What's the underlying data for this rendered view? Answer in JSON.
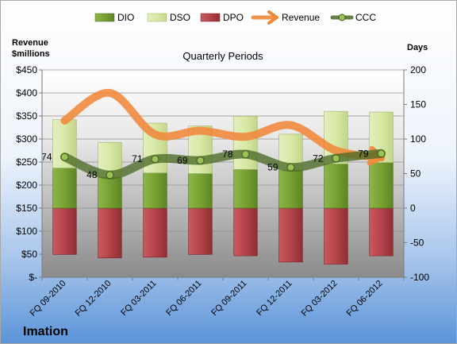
{
  "company": "Imation",
  "colors": {
    "dio": "#77a232",
    "dso": "#d8e8a6",
    "dpo": "#b5434a",
    "revenue": "#f0883a",
    "ccc": "#4b6a26",
    "bg_top": "#ffffff",
    "bg_bottom": "#5b94d8"
  },
  "chart_data": {
    "type": "bar",
    "title": "Quarterly Periods",
    "ylabel_left": "Revenue $millions",
    "ylabel_right": "Days",
    "categories": [
      "FQ 09-2010",
      "FQ 12-2010",
      "FQ 03-2011",
      "FQ 06-2011",
      "FQ 09-2011",
      "FQ 12-2011",
      "FQ 03-2012",
      "FQ 06-2012"
    ],
    "left_axis": {
      "ylim": [
        0,
        450
      ],
      "ticks": [
        0,
        50,
        100,
        150,
        200,
        250,
        300,
        350,
        400,
        450
      ],
      "tick_labels": [
        "$-",
        "$50",
        "$100",
        "$150",
        "$200",
        "$250",
        "$300",
        "$350",
        "$400",
        "$450"
      ]
    },
    "right_axis": {
      "ylim": [
        -100,
        200
      ],
      "ticks": [
        -100,
        -50,
        0,
        50,
        100,
        150,
        200
      ],
      "tick_labels": [
        "-100",
        "-50",
        "0",
        "50",
        "100",
        "150",
        "200"
      ]
    },
    "legend": [
      "DIO",
      "DSO",
      "DPO",
      "Revenue",
      "CCC"
    ],
    "legend_position": "top",
    "series": [
      {
        "name": "DIO",
        "axis": "right",
        "type": "stacked-bar",
        "values": [
          58,
          45,
          51,
          50,
          56,
          55,
          64,
          66
        ]
      },
      {
        "name": "DSO",
        "axis": "right",
        "type": "stacked-bar",
        "values": [
          70,
          50,
          72,
          69,
          77,
          52,
          76,
          73
        ]
      },
      {
        "name": "DPO",
        "axis": "right",
        "type": "negative-bar",
        "values": [
          -67,
          -72,
          -71,
          -67,
          -69,
          -78,
          -81,
          -69
        ]
      },
      {
        "name": "Revenue",
        "axis": "left",
        "type": "line",
        "values": [
          340,
          400,
          310,
          318,
          305,
          330,
          275,
          260
        ]
      },
      {
        "name": "CCC",
        "axis": "right",
        "type": "line",
        "values": [
          74,
          48,
          71,
          69,
          78,
          59,
          72,
          79
        ],
        "data_labels": [
          "74",
          "48",
          "71",
          "69",
          "78",
          "59",
          "72",
          "79"
        ]
      }
    ]
  }
}
